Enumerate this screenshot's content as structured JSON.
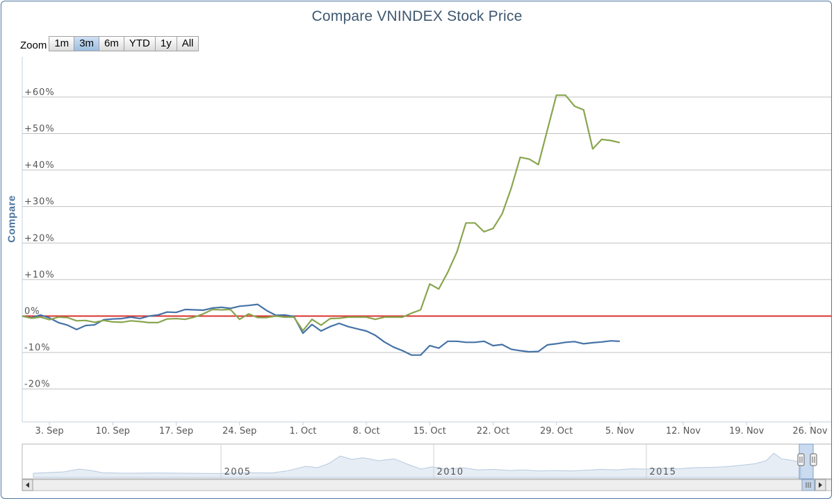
{
  "title": "Compare VNINDEX Stock Price",
  "zoom": {
    "label": "Zoom",
    "buttons": [
      "1m",
      "3m",
      "6m",
      "YTD",
      "1y",
      "All"
    ],
    "selected": "3m"
  },
  "colors": {
    "series_blue": "#4572a7",
    "series_green": "#89a54e",
    "zero_line": "#d9322d",
    "navigator_fill": "#e6edf5",
    "navigator_line": "#b6c9de"
  },
  "chart_data": {
    "type": "line",
    "title": "Compare VNINDEX Stock Price",
    "ylabel": "Compare",
    "ylim": [
      -29,
      71
    ],
    "y_ticks": [
      -20,
      -10,
      0,
      10,
      20,
      30,
      40,
      50,
      60
    ],
    "y_tick_labels": [
      "-20%",
      "-10%",
      "0%",
      "+10%",
      "+20%",
      "+30%",
      "+40%",
      "+50%",
      "+60%"
    ],
    "x_ticks": [
      2,
      9,
      16,
      23,
      30,
      37,
      44,
      51,
      58,
      65,
      72,
      79,
      86
    ],
    "x_tick_labels": [
      "3. Sep",
      "10. Sep",
      "17. Sep",
      "24. Sep",
      "1. Oct",
      "8. Oct",
      "15. Oct",
      "22. Oct",
      "29. Oct",
      "5. Nov",
      "12. Nov",
      "19. Nov",
      "26. Nov"
    ],
    "xlim": [
      -1,
      88.5
    ],
    "reference_line": {
      "y": 0
    },
    "grid": true,
    "series": [
      {
        "color": "#4572a7",
        "points": [
          [
            -1,
            0
          ],
          [
            0,
            -0.5
          ],
          [
            1,
            0.3
          ],
          [
            2,
            -0.5
          ],
          [
            3,
            -1.8
          ],
          [
            4,
            -2.5
          ],
          [
            5,
            -3.7
          ],
          [
            6,
            -2.6
          ],
          [
            7,
            -2.4
          ],
          [
            8,
            -1
          ],
          [
            9,
            -0.8
          ],
          [
            10,
            -0.7
          ],
          [
            11,
            -0.3
          ],
          [
            12,
            -0.7
          ],
          [
            13,
            0
          ],
          [
            14,
            0.3
          ],
          [
            15,
            1.1
          ],
          [
            16,
            1
          ],
          [
            17,
            1.8
          ],
          [
            18,
            1.7
          ],
          [
            19,
            1.6
          ],
          [
            20,
            2.2
          ],
          [
            21,
            2.4
          ],
          [
            22,
            2.1
          ],
          [
            23,
            2.7
          ],
          [
            24,
            2.9
          ],
          [
            25,
            3.2
          ],
          [
            26,
            1.5
          ],
          [
            27,
            0.2
          ],
          [
            28,
            0.3
          ],
          [
            29,
            -0.1
          ],
          [
            30,
            -4.7
          ],
          [
            31,
            -2.3
          ],
          [
            32,
            -4.1
          ],
          [
            33,
            -2.9
          ],
          [
            34,
            -2
          ],
          [
            35,
            -2.9
          ],
          [
            36,
            -3.5
          ],
          [
            37,
            -4.1
          ],
          [
            38,
            -5.3
          ],
          [
            39,
            -7.1
          ],
          [
            40,
            -8.5
          ],
          [
            41,
            -9.5
          ],
          [
            42,
            -10.7
          ],
          [
            43,
            -10.7
          ],
          [
            44,
            -8.1
          ],
          [
            45,
            -8.8
          ],
          [
            46,
            -6.9
          ],
          [
            47,
            -6.9
          ],
          [
            48,
            -7.2
          ],
          [
            49,
            -7.2
          ],
          [
            50,
            -6.9
          ],
          [
            51,
            -8.1
          ],
          [
            52,
            -7.8
          ],
          [
            53,
            -9.1
          ],
          [
            54,
            -9.5
          ],
          [
            55,
            -9.8
          ],
          [
            56,
            -9.7
          ],
          [
            57,
            -7.9
          ],
          [
            58,
            -7.6
          ],
          [
            59,
            -7.2
          ],
          [
            60,
            -7
          ],
          [
            61,
            -7.6
          ],
          [
            62,
            -7.3
          ],
          [
            63,
            -7.1
          ],
          [
            64,
            -6.8
          ],
          [
            65,
            -6.9
          ]
        ]
      },
      {
        "color": "#89a54e",
        "points": [
          [
            -1,
            0
          ],
          [
            0,
            -0.6
          ],
          [
            1,
            -0.3
          ],
          [
            2,
            -1
          ],
          [
            3,
            -0.3
          ],
          [
            4,
            -0.4
          ],
          [
            5,
            -1.3
          ],
          [
            6,
            -1.2
          ],
          [
            7,
            -1.7
          ],
          [
            8,
            -1.2
          ],
          [
            9,
            -1.6
          ],
          [
            10,
            -1.7
          ],
          [
            11,
            -1.3
          ],
          [
            12,
            -1.5
          ],
          [
            13,
            -1.8
          ],
          [
            14,
            -1.8
          ],
          [
            15,
            -0.8
          ],
          [
            16,
            -0.7
          ],
          [
            17,
            -0.9
          ],
          [
            18,
            -0.3
          ],
          [
            19,
            0.6
          ],
          [
            20,
            1.8
          ],
          [
            21,
            1.7
          ],
          [
            22,
            1.8
          ],
          [
            23,
            -0.9
          ],
          [
            24,
            0.6
          ],
          [
            25,
            -0.4
          ],
          [
            26,
            -0.4
          ],
          [
            27,
            0
          ],
          [
            28,
            -0.3
          ],
          [
            29,
            -0.3
          ],
          [
            30,
            -4
          ],
          [
            31,
            -0.9
          ],
          [
            32,
            -2.5
          ],
          [
            33,
            -0.7
          ],
          [
            34,
            -0.6
          ],
          [
            35,
            -0.3
          ],
          [
            36,
            -0.3
          ],
          [
            37,
            -0.3
          ],
          [
            38,
            -0.9
          ],
          [
            39,
            -0.3
          ],
          [
            40,
            -0.3
          ],
          [
            41,
            -0.3
          ],
          [
            42,
            0.8
          ],
          [
            43,
            1.7
          ],
          [
            44,
            8.8
          ],
          [
            45,
            7.4
          ],
          [
            46,
            12
          ],
          [
            47,
            17.5
          ],
          [
            48,
            25.5
          ],
          [
            49,
            25.5
          ],
          [
            50,
            23.1
          ],
          [
            51,
            24
          ],
          [
            52,
            28
          ],
          [
            53,
            35
          ],
          [
            54,
            43.5
          ],
          [
            55,
            43
          ],
          [
            56,
            41.5
          ],
          [
            57,
            51
          ],
          [
            58,
            60.5
          ],
          [
            59,
            60.5
          ],
          [
            60,
            57.5
          ],
          [
            61,
            56.5
          ],
          [
            62,
            45.8
          ],
          [
            63,
            48.4
          ],
          [
            64,
            48.1
          ],
          [
            65,
            47.5
          ]
        ]
      }
    ]
  },
  "navigator": {
    "year_labels": [
      "2005",
      "2010",
      "2015"
    ]
  }
}
